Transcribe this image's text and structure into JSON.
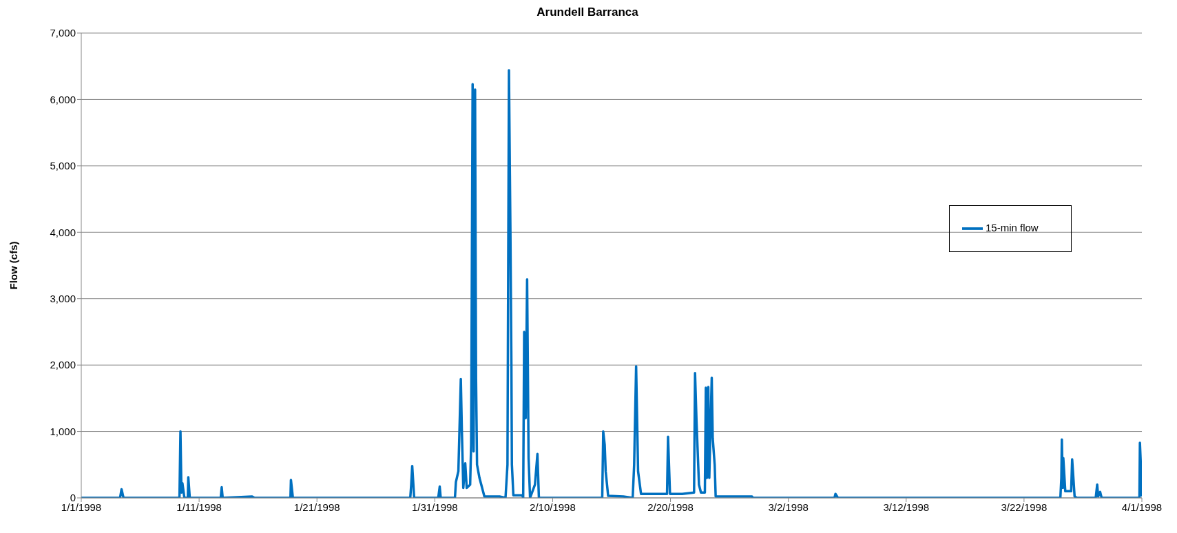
{
  "chart_data": {
    "type": "line",
    "title": "Arundell Barranca",
    "ylabel": "Flow (cfs)",
    "x": [
      "1998-01-01T00:00",
      "1998-01-04T07:00",
      "1998-01-04T10:00",
      "1998-01-04T14:00",
      "1998-01-09T08:00",
      "1998-01-09T10:00",
      "1998-01-09T12:00",
      "1998-01-09T14:00",
      "1998-01-09T18:00",
      "1998-01-10T01:00",
      "1998-01-10T02:00",
      "1998-01-10T05:00",
      "1998-01-12T20:00",
      "1998-01-12T22:00",
      "1998-01-13T00:00",
      "1998-01-15T12:00",
      "1998-01-15T17:00",
      "1998-01-18T18:00",
      "1998-01-18T19:00",
      "1998-01-18T23:00",
      "1998-01-28T22:00",
      "1998-01-29T00:00",
      "1998-01-29T02:00",
      "1998-01-29T06:00",
      "1998-01-31T07:00",
      "1998-01-31T10:00",
      "1998-01-31T12:00",
      "1998-02-01T17:00",
      "1998-02-01T19:00",
      "1998-02-02T00:00",
      "1998-02-02T05:00",
      "1998-02-02T07:00",
      "1998-02-02T10:00",
      "1998-02-02T14:00",
      "1998-02-02T17:00",
      "1998-02-03T00:00",
      "1998-02-03T02:00",
      "1998-02-03T05:00",
      "1998-02-03T07:00",
      "1998-02-03T10:00",
      "1998-02-03T12:00",
      "1998-02-03T14:00",
      "1998-02-03T19:00",
      "1998-02-04T05:00",
      "1998-02-05T12:00",
      "1998-02-06T00:00",
      "1998-02-06T04:00",
      "1998-02-06T07:00",
      "1998-02-06T10:00",
      "1998-02-06T12:00",
      "1998-02-06T13:00",
      "1998-02-06T16:00",
      "1998-02-07T10:00",
      "1998-02-07T12:00",
      "1998-02-07T14:00",
      "1998-02-07T17:00",
      "1998-02-07T20:00",
      "1998-02-07T23:00",
      "1998-02-08T02:00",
      "1998-02-08T12:00",
      "1998-02-08T17:00",
      "1998-02-08T20:00",
      "1998-02-14T05:00",
      "1998-02-14T07:00",
      "1998-02-14T10:00",
      "1998-02-14T12:00",
      "1998-02-14T17:00",
      "1998-02-16T00:00",
      "1998-02-16T19:00",
      "1998-02-16T22:00",
      "1998-02-17T02:00",
      "1998-02-17T06:00",
      "1998-02-17T12:00",
      "1998-02-19T17:00",
      "1998-02-19T19:00",
      "1998-02-19T23:00",
      "1998-02-21T00:00",
      "1998-02-22T00:00",
      "1998-02-22T02:00",
      "1998-02-22T05:00",
      "1998-02-22T10:00",
      "1998-02-22T14:00",
      "1998-02-22T22:00",
      "1998-02-23T00:00",
      "1998-02-23T02:00",
      "1998-02-23T05:00",
      "1998-02-23T07:00",
      "1998-02-23T12:00",
      "1998-02-23T14:00",
      "1998-02-23T18:00",
      "1998-02-23T20:00",
      "1998-02-26T22:00",
      "1998-02-27T00:00",
      "1998-03-05T22:00",
      "1998-03-06T00:00",
      "1998-03-06T05:00",
      "1998-03-25T02:00",
      "1998-03-25T04:00",
      "1998-03-25T05:00",
      "1998-03-25T07:00",
      "1998-03-25T08:00",
      "1998-03-25T12:00",
      "1998-03-26T00:00",
      "1998-03-26T02:00",
      "1998-03-26T07:00",
      "1998-03-26T12:00",
      "1998-03-28T02:00",
      "1998-03-28T05:00",
      "1998-03-28T07:00",
      "1998-03-28T11:00",
      "1998-03-28T14:00",
      "1998-03-31T19:00",
      "1998-03-31T20:00",
      "1998-03-31T23:00",
      "1998-04-01T00:00"
    ],
    "series": [
      {
        "name": "15-min flow",
        "color": "#0070c0",
        "values": [
          0,
          0,
          130,
          0,
          0,
          1000,
          80,
          220,
          0,
          0,
          310,
          0,
          0,
          160,
          0,
          20,
          0,
          0,
          270,
          0,
          0,
          200,
          480,
          0,
          0,
          170,
          0,
          0,
          240,
          400,
          1790,
          1050,
          150,
          520,
          150,
          200,
          800,
          6230,
          700,
          6150,
          1800,
          500,
          300,
          20,
          20,
          0,
          500,
          6440,
          4000,
          2000,
          500,
          40,
          40,
          0,
          2500,
          1200,
          3290,
          600,
          0,
          200,
          660,
          0,
          0,
          1000,
          800,
          400,
          30,
          20,
          0,
          500,
          1980,
          400,
          60,
          60,
          920,
          60,
          60,
          80,
          1880,
          1150,
          200,
          80,
          80,
          1660,
          300,
          1670,
          300,
          1810,
          900,
          500,
          20,
          20,
          0,
          0,
          60,
          0,
          0,
          300,
          880,
          150,
          600,
          100,
          100,
          580,
          20,
          0,
          0,
          200,
          20,
          90,
          0,
          0,
          830,
          300,
          20
        ]
      }
    ],
    "xlim": [
      "1998-01-01",
      "1998-04-01"
    ],
    "xticks": [
      {
        "value": "1998-01-01",
        "label": "1/1/1998"
      },
      {
        "value": "1998-01-11",
        "label": "1/11/1998"
      },
      {
        "value": "1998-01-21",
        "label": "1/21/1998"
      },
      {
        "value": "1998-01-31",
        "label": "1/31/1998"
      },
      {
        "value": "1998-02-10",
        "label": "2/10/1998"
      },
      {
        "value": "1998-02-20",
        "label": "2/20/1998"
      },
      {
        "value": "1998-03-02",
        "label": "3/2/1998"
      },
      {
        "value": "1998-03-12",
        "label": "3/12/1998"
      },
      {
        "value": "1998-03-22",
        "label": "3/22/1998"
      },
      {
        "value": "1998-04-01",
        "label": "4/1/1998"
      }
    ],
    "ylim": [
      0,
      7000
    ],
    "yticks": [
      0,
      {
        "value": 1000,
        "label": "1,000"
      },
      {
        "value": 2000,
        "label": "2,000"
      },
      {
        "value": 3000,
        "label": "3,000"
      },
      {
        "value": 4000,
        "label": "4,000"
      },
      {
        "value": 5000,
        "label": "5,000"
      },
      {
        "value": 6000,
        "label": "6,000"
      },
      {
        "value": 7000,
        "label": "7,000"
      }
    ],
    "grid": "y",
    "legend": "right",
    "marker": "none",
    "line_style": "solid"
  }
}
